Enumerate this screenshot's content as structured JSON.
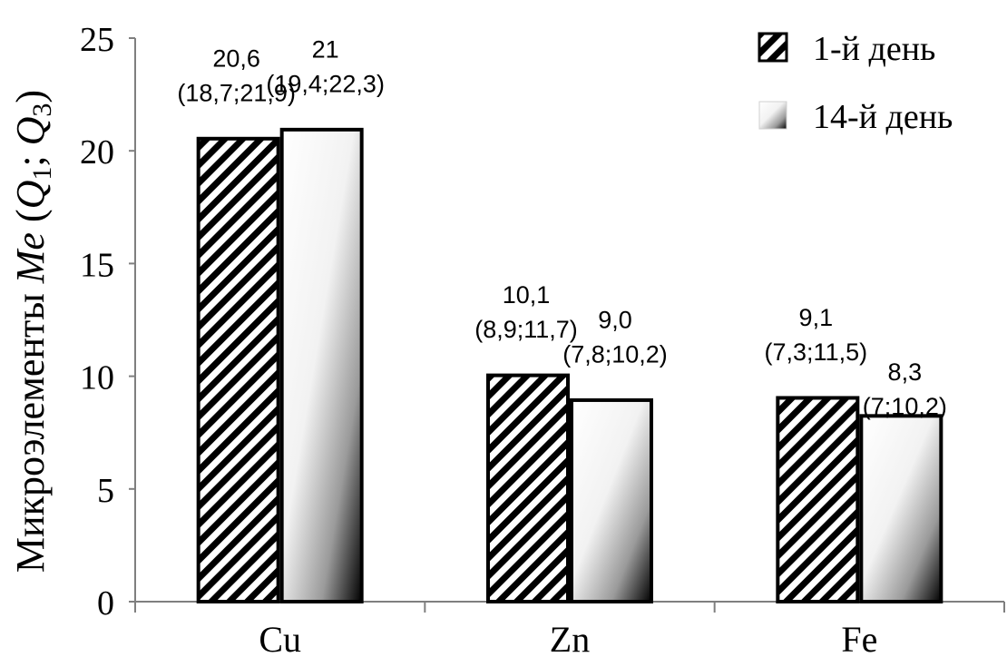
{
  "chart_data": {
    "type": "bar",
    "categories": [
      "Cu",
      "Zn",
      "Fe"
    ],
    "series": [
      {
        "name": "1-й день",
        "values": [
          20.6,
          10.1,
          9.1
        ],
        "labels": [
          "20,6",
          "10,1",
          "9,1"
        ],
        "iqr_labels": [
          "(18,7;21,9)",
          "(8,9;11,7)",
          "(7,3;11,5)"
        ],
        "fill": "hatched",
        "color": "#000000"
      },
      {
        "name": "14-й день",
        "values": [
          21,
          9.0,
          8.3
        ],
        "labels": [
          "21",
          "9,0",
          "8,3"
        ],
        "iqr_labels": [
          "(19,4;22,3)",
          "(7,8;10,2)",
          "(7;10,2)"
        ],
        "fill": "gradient",
        "color": "#000000"
      }
    ],
    "ylabel": "Микроэлементы Me (Q1; Q3)",
    "ylabel_parts": {
      "text": "Микроэлементы ",
      "me": "Me",
      "open": " (",
      "q1": "Q",
      "sub1": "1",
      "sep": "; ",
      "q3": "Q",
      "sub3": "3",
      "close": ")"
    },
    "yticks": [
      "0",
      "5",
      "10",
      "15",
      "20",
      "25"
    ],
    "ylim": [
      0,
      25
    ],
    "grid": false,
    "legend_position": "top-right"
  }
}
